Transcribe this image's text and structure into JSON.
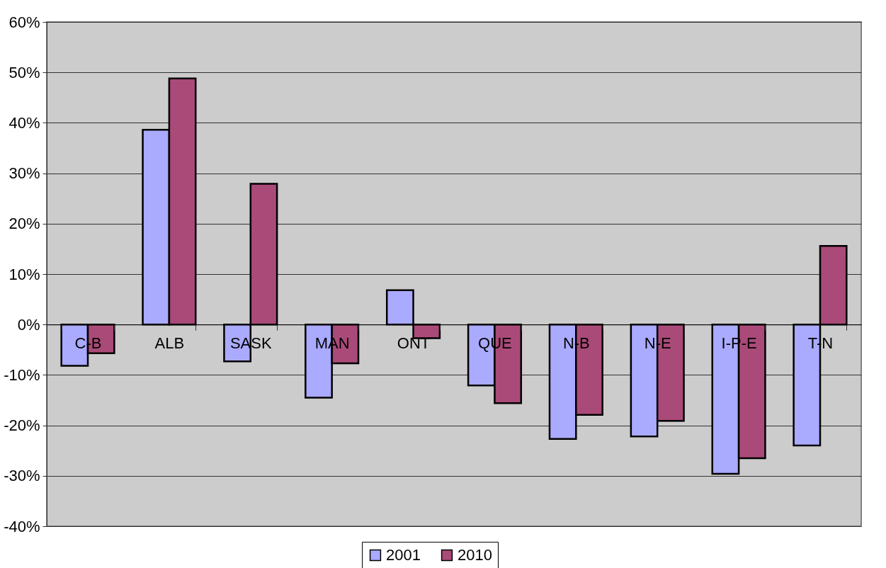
{
  "chart_data": {
    "type": "bar",
    "categories": [
      "C-B",
      "ALB",
      "SASK",
      "MAN",
      "ONT",
      "QUE",
      "N-B",
      "N-E",
      "I-P-E",
      "T-N"
    ],
    "series": [
      {
        "name": "2001",
        "color": "#aaaaff",
        "values": [
          -8.2,
          38.6,
          -7.3,
          -14.5,
          6.8,
          -12.1,
          -22.7,
          -22.2,
          -29.6,
          -24.0
        ]
      },
      {
        "name": "2010",
        "color": "#aa4a78",
        "values": [
          -5.7,
          48.8,
          27.9,
          -7.7,
          -2.7,
          -15.6,
          -17.9,
          -19.1,
          -26.5,
          15.6
        ]
      }
    ],
    "ylim": [
      -40,
      60
    ],
    "yticks": [
      {
        "value": -40,
        "label": "-40%"
      },
      {
        "value": -30,
        "label": "-30%"
      },
      {
        "value": -20,
        "label": "-20%"
      },
      {
        "value": -10,
        "label": "-10%"
      },
      {
        "value": 0,
        "label": "0%"
      },
      {
        "value": 10,
        "label": "10%"
      },
      {
        "value": 20,
        "label": "20%"
      },
      {
        "value": 30,
        "label": "30%"
      },
      {
        "value": 40,
        "label": "40%"
      },
      {
        "value": 50,
        "label": "50%"
      },
      {
        "value": 60,
        "label": "60%"
      }
    ],
    "grid": "y",
    "legend": "bottom"
  }
}
